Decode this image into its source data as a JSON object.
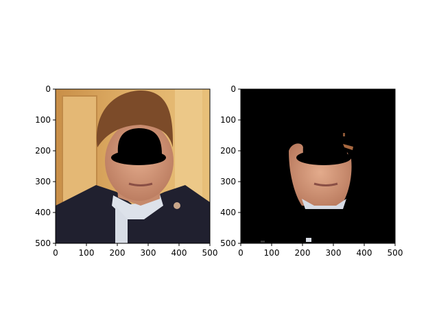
{
  "chart_data": [
    {
      "type": "image",
      "title": "",
      "xlabel": "",
      "ylabel": "",
      "xlim": [
        0,
        500
      ],
      "ylim": [
        500,
        0
      ],
      "xticks": [
        "0",
        "100",
        "200",
        "300",
        "400",
        "500"
      ],
      "yticks": [
        "0",
        "100",
        "200",
        "300",
        "400",
        "500"
      ],
      "description_kind": "original photo with face region masked by a black hat-shaped patch",
      "grid": false
    },
    {
      "type": "image",
      "title": "",
      "xlabel": "",
      "ylabel": "",
      "xlim": [
        0,
        500
      ],
      "ylim": [
        500,
        0
      ],
      "xticks": [
        "0",
        "100",
        "200",
        "300",
        "400",
        "500"
      ],
      "yticks": [
        "0",
        "100",
        "200",
        "300",
        "400",
        "500"
      ],
      "description_kind": "segmented skin region on black background with same mask",
      "grid": false
    }
  ],
  "colors": {
    "background_wall": "#d8a45a",
    "door": "#e2b56c",
    "hair": "#7a4a28",
    "skin": "#d49a7c",
    "coat": "#1f1f2e",
    "shirt": "#dfe4ec",
    "mask": "#000000"
  }
}
